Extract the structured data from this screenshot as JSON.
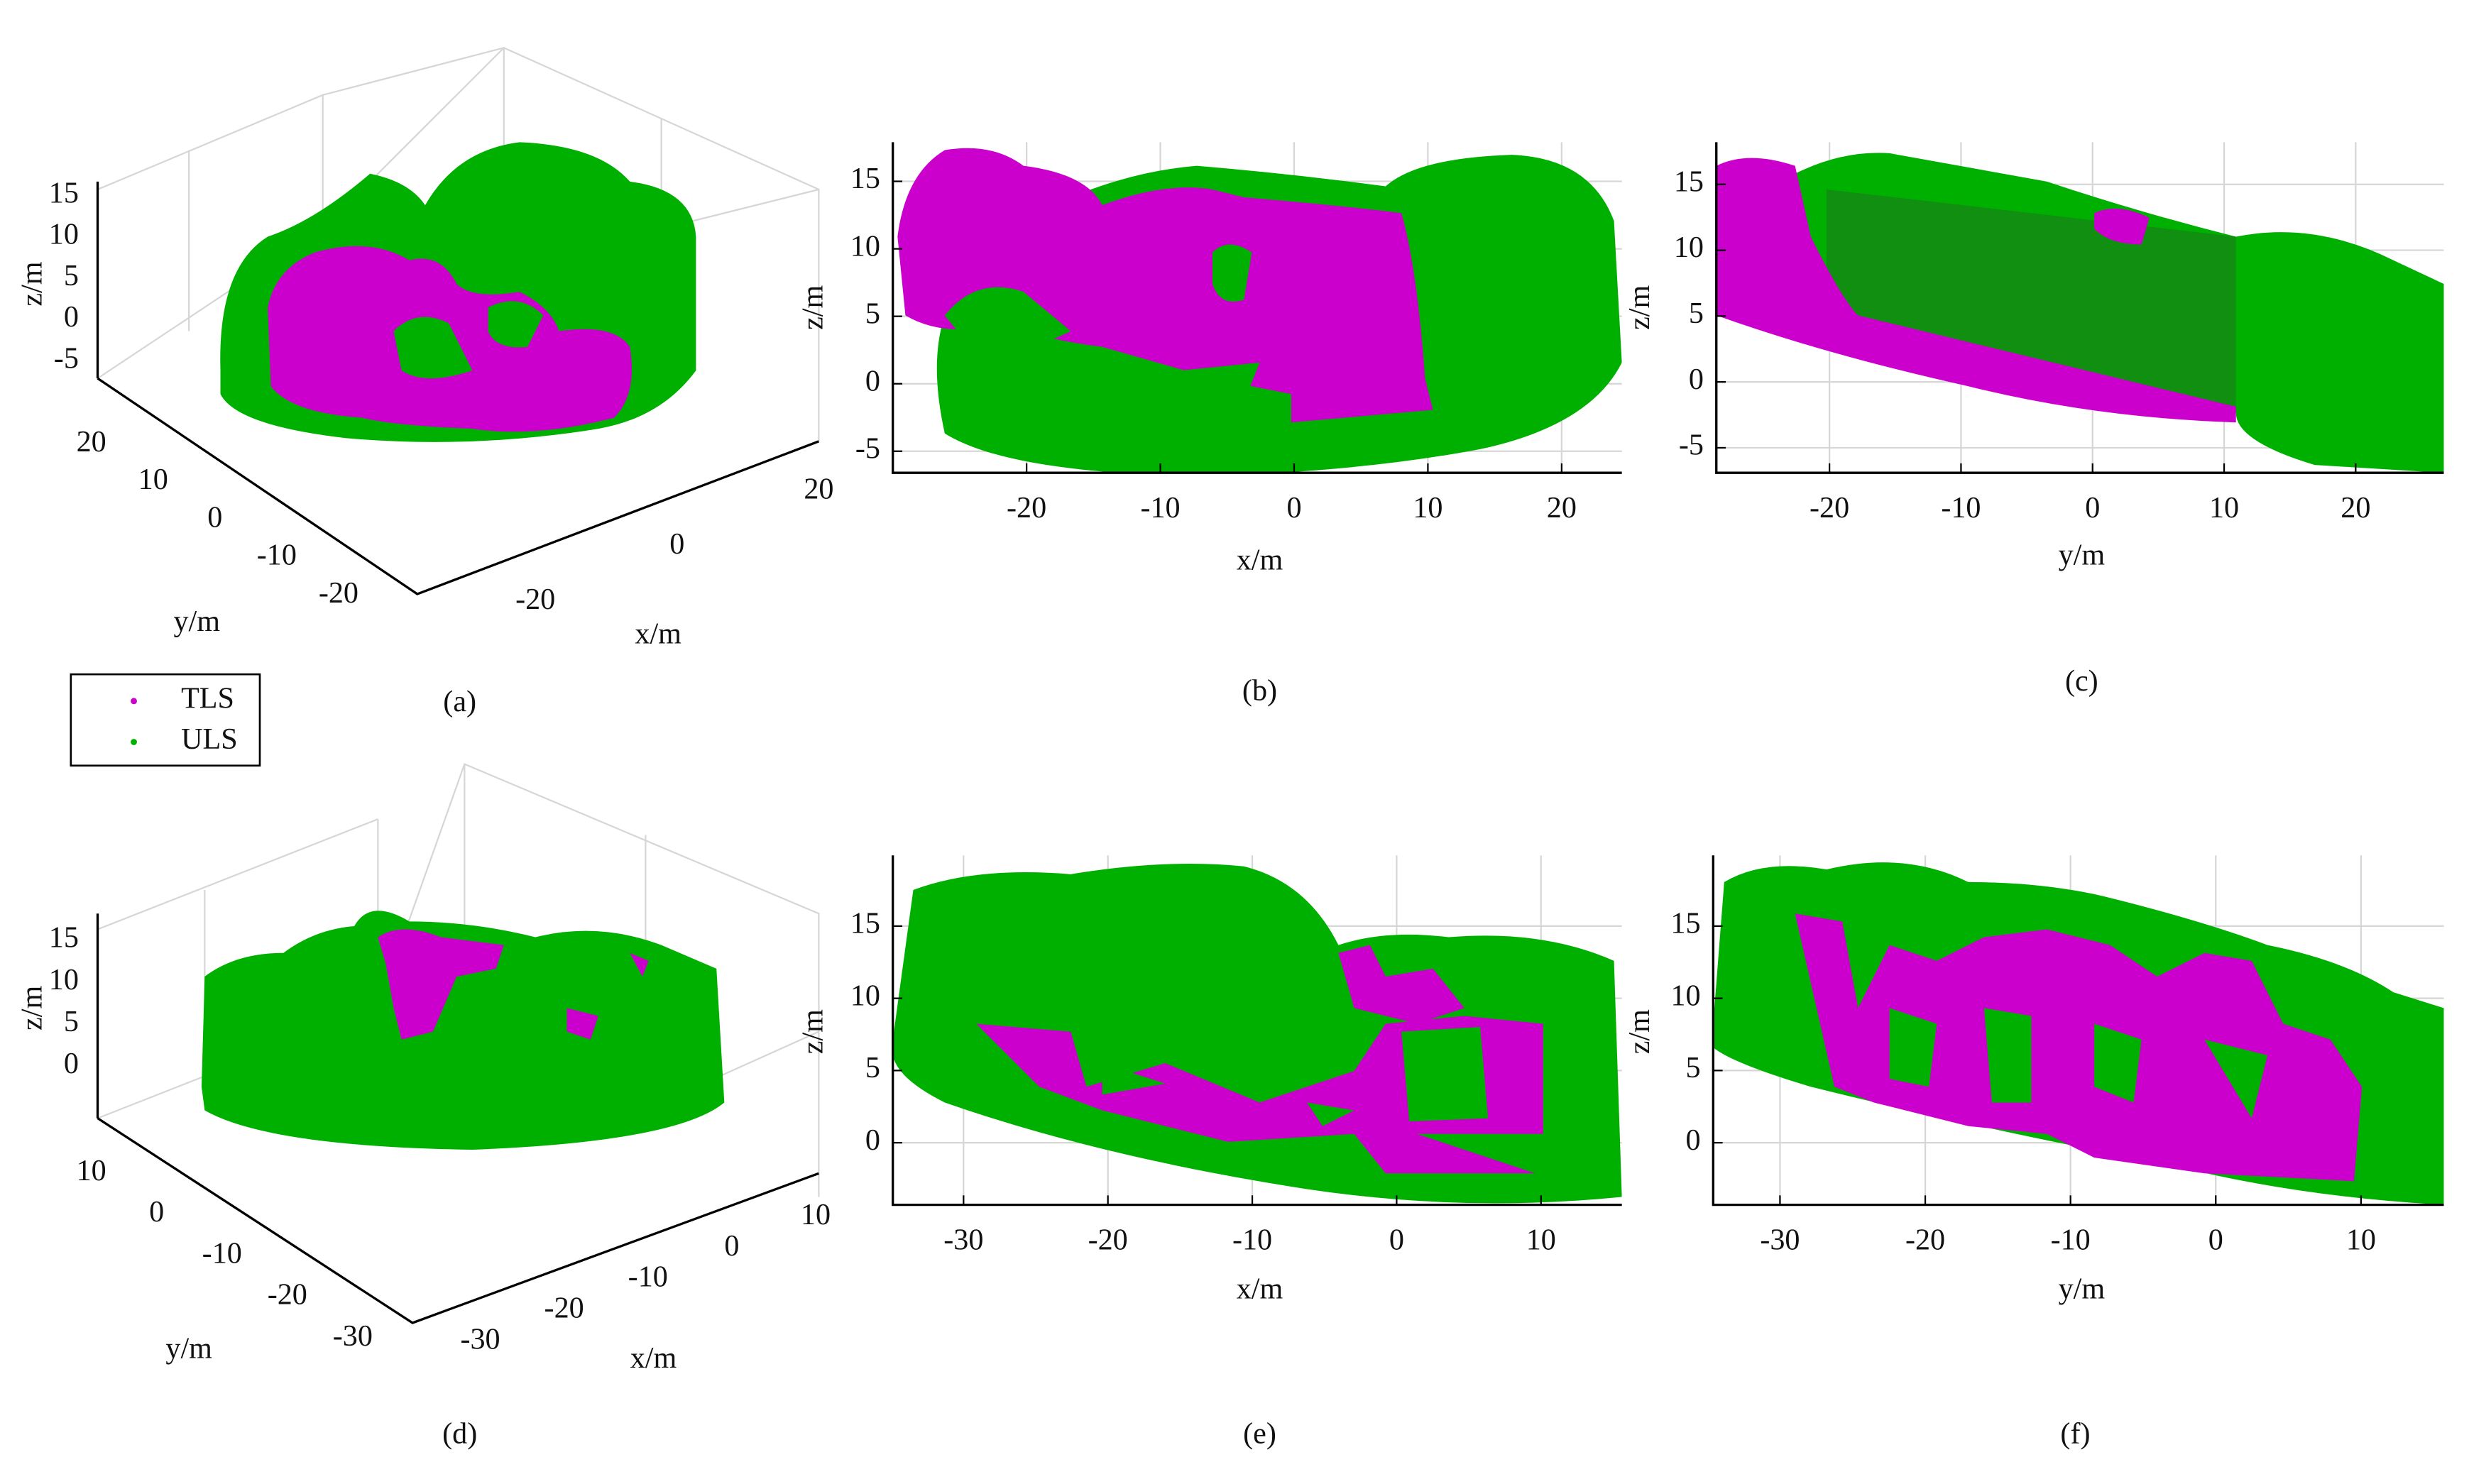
{
  "legend": [
    {
      "name": "TLS",
      "color": "#cc00cc"
    },
    {
      "name": "ULS",
      "color": "#00b000"
    }
  ],
  "panels": [
    {
      "label": "(a)",
      "view": "3d",
      "x_label": "x/m",
      "y_label": "y/m",
      "z_label": "z/m",
      "xticks": [
        -20,
        0,
        20
      ],
      "yticks": [
        -20,
        -10,
        0,
        10,
        20
      ],
      "zticks": [
        -5,
        0,
        5,
        10,
        15
      ]
    },
    {
      "label": "(b)",
      "view": "2d",
      "x_label": "x/m",
      "z_label": "z/m",
      "xlim": [
        -30,
        24.5
      ],
      "zlim": [
        -6.6,
        17.9
      ],
      "xticks": [
        -20,
        -10,
        0,
        10,
        20
      ],
      "zticks": [
        -5,
        0,
        5,
        10,
        15
      ],
      "grid": true
    },
    {
      "label": "(c)",
      "view": "2d",
      "x_label": "y/m",
      "z_label": "z/m",
      "xlim": [
        -28.6,
        26.7
      ],
      "zlim": [
        -6.9,
        18.2
      ],
      "xticks": [
        -20,
        -10,
        0,
        10,
        20
      ],
      "zticks": [
        -5,
        0,
        5,
        10,
        15
      ],
      "grid": true
    },
    {
      "label": "(d)",
      "view": "3d",
      "x_label": "x/m",
      "y_label": "y/m",
      "z_label": "z/m",
      "xticks": [
        -30,
        -20,
        -10,
        0,
        10
      ],
      "yticks": [
        -30,
        -20,
        -10,
        0,
        10
      ],
      "zticks": [
        0,
        5,
        10,
        15
      ]
    },
    {
      "label": "(e)",
      "view": "2d",
      "x_label": "x/m",
      "z_label": "z/m",
      "xlim": [
        -34.9,
        15.6
      ],
      "zlim": [
        -4.3,
        19.9
      ],
      "xticks": [
        -30,
        -20,
        -10,
        0,
        10
      ],
      "zticks": [
        0,
        5,
        10,
        15
      ],
      "grid": true
    },
    {
      "label": "(f)",
      "view": "2d",
      "x_label": "y/m",
      "z_label": "z/m",
      "xlim": [
        -34.6,
        15.7
      ],
      "zlim": [
        -4.3,
        19.9
      ],
      "xticks": [
        -30,
        -20,
        -10,
        0,
        10
      ],
      "zticks": [
        0,
        5,
        10,
        15
      ],
      "grid": true
    }
  ]
}
